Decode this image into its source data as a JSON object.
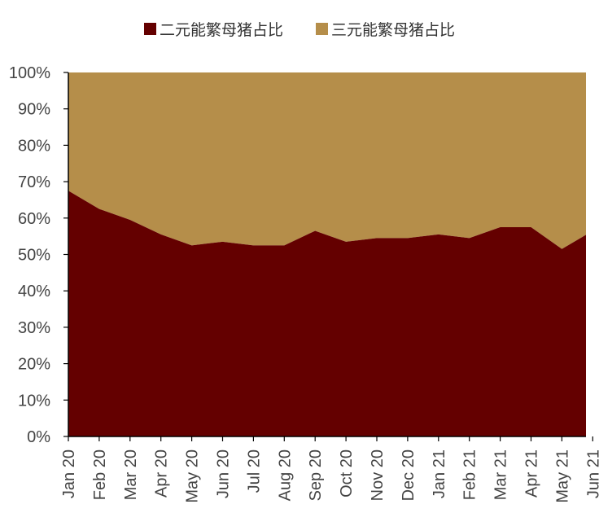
{
  "chart_data": {
    "type": "area",
    "stacked": true,
    "legend_position": "top",
    "grid": false,
    "categories": [
      "Jan 20",
      "Feb 20",
      "Mar 20",
      "Apr 20",
      "May 20",
      "Jun 20",
      "Jul 20",
      "Aug 20",
      "Sep 20",
      "Oct 20",
      "Nov 20",
      "Dec 20",
      "Jan 21",
      "Feb 21",
      "Mar 21",
      "Apr 21",
      "May 21",
      "Jun 21"
    ],
    "y_ticks": [
      "0%",
      "10%",
      "20%",
      "30%",
      "40%",
      "50%",
      "60%",
      "70%",
      "80%",
      "90%",
      "100%"
    ],
    "ylim": [
      0,
      100
    ],
    "series": [
      {
        "name": "二元能繁母猪占比",
        "color": "#640000",
        "values": [
          67.5,
          62.5,
          59.5,
          55.5,
          52.5,
          53.5,
          52.5,
          52.5,
          56.5,
          53.5,
          54.5,
          54.5,
          55.5,
          54.5,
          57.5,
          57.5,
          51.5,
          56.5
        ]
      },
      {
        "name": "三元能繁母猪占比",
        "color": "#B58E4A",
        "values": [
          32.5,
          37.5,
          40.5,
          44.5,
          47.5,
          46.5,
          47.5,
          47.5,
          43.5,
          46.5,
          45.5,
          45.5,
          44.5,
          45.5,
          42.5,
          42.5,
          48.5,
          43.5
        ]
      }
    ]
  }
}
